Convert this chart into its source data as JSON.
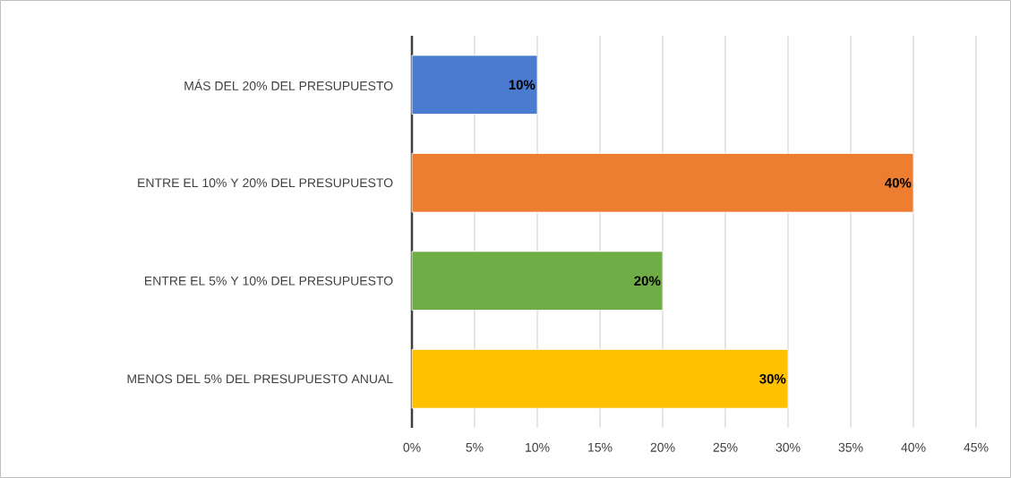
{
  "chart_data": {
    "type": "bar",
    "orientation": "horizontal",
    "categories": [
      "MÁS DEL 20% DEL PRESUPUESTO",
      "ENTRE EL 10% Y 20% DEL PRESUPUESTO",
      "ENTRE EL 5% Y 10% DEL PRESUPUESTO",
      "MENOS DEL 5% DEL PRESUPUESTO ANUAL"
    ],
    "values": [
      10,
      40,
      20,
      30
    ],
    "colors": [
      "#4a7bcf",
      "#ed7d31",
      "#70ad47",
      "#ffc000"
    ],
    "value_labels": [
      "10%",
      "40%",
      "20%",
      "30%"
    ],
    "xlim": [
      0,
      45
    ],
    "xticks": [
      {
        "value": 0,
        "label": "0%"
      },
      {
        "value": 5,
        "label": "5%"
      },
      {
        "value": 10,
        "label": "10%"
      },
      {
        "value": 15,
        "label": "15%"
      },
      {
        "value": 20,
        "label": "20%"
      },
      {
        "value": 25,
        "label": "25%"
      },
      {
        "value": 30,
        "label": "30%"
      },
      {
        "value": 35,
        "label": "35%"
      },
      {
        "value": 40,
        "label": "40%"
      },
      {
        "value": 45,
        "label": "45%"
      }
    ],
    "grid": "x"
  }
}
